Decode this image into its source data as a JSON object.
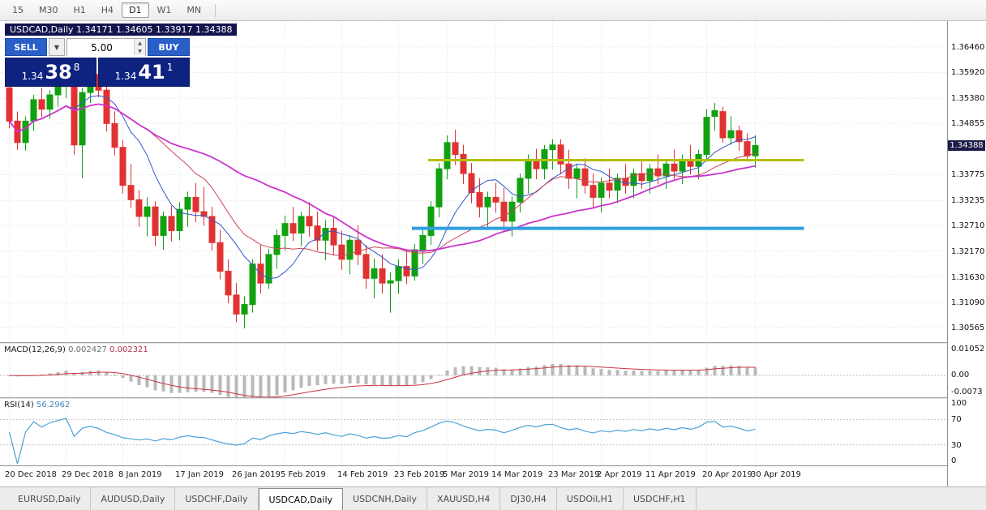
{
  "toolbar": {
    "timeframes": [
      "15",
      "M30",
      "H1",
      "H4",
      "D1",
      "W1",
      "MN"
    ],
    "active": "D1"
  },
  "chart": {
    "title": "USDCAD,Daily 1.34171 1.34605 1.33917 1.34388",
    "symbol": "USDCAD",
    "period": "Daily",
    "ohlc": {
      "open": "1.34171",
      "high": "1.34605",
      "low": "1.33917",
      "close": "1.34388"
    }
  },
  "trade_panel": {
    "sell_button": "SELL",
    "buy_button": "BUY",
    "volume": "5.00",
    "dropdown_glyph": "▼",
    "spin_up_glyph": "▲",
    "spin_down_glyph": "▼",
    "sell_price": {
      "prefix": "1.34",
      "big": "38",
      "sup": "8"
    },
    "buy_price": {
      "prefix": "1.34",
      "big": "41",
      "sup": "1"
    }
  },
  "price_scale": {
    "current": "1.34388",
    "current_value": 1.34388,
    "ticks": [
      {
        "label": "1.36460",
        "value": 1.3646
      },
      {
        "label": "1.35920",
        "value": 1.3592
      },
      {
        "label": "1.35380",
        "value": 1.3538
      },
      {
        "label": "1.34855",
        "value": 1.34855
      },
      {
        "label": "1.33775",
        "value": 1.33775
      },
      {
        "label": "1.33235",
        "value": 1.33235
      },
      {
        "label": "1.32710",
        "value": 1.3271
      },
      {
        "label": "1.32170",
        "value": 1.3217
      },
      {
        "label": "1.31630",
        "value": 1.3163
      },
      {
        "label": "1.31090",
        "value": 1.3109
      },
      {
        "label": "1.30565",
        "value": 1.30565
      }
    ]
  },
  "macd": {
    "label": "MACD(12,26,9)",
    "value_main": "0.002427",
    "value_signal": "0.002321",
    "scale_labels": [
      "0.01052",
      "0.00",
      "-0.0073"
    ],
    "scale_values": [
      0.01052,
      0.0,
      -0.0073
    ]
  },
  "rsi": {
    "label": "RSI(14)",
    "value": "56.2962",
    "levels": [
      70,
      30
    ],
    "scale_labels": [
      "100",
      "70",
      "30",
      "0"
    ]
  },
  "tabs": [
    {
      "label": "EURUSD,Daily",
      "active": false
    },
    {
      "label": "AUDUSD,Daily",
      "active": false
    },
    {
      "label": "USDCHF,Daily",
      "active": false
    },
    {
      "label": "USDCAD,Daily",
      "active": true
    },
    {
      "label": "USDCNH,Daily",
      "active": false
    },
    {
      "label": "XAUUSD,H4",
      "active": false
    },
    {
      "label": "DJ30,H4",
      "active": false
    },
    {
      "label": "USDOil,H1",
      "active": false
    },
    {
      "label": "USDCHF,H1",
      "active": false
    }
  ],
  "colors": {
    "bull": "#10a010",
    "bear": "#e03232",
    "ma_fast": "#3355cc",
    "ma_mid": "#cc4455",
    "ma_slow": "#cc33cc",
    "resistance_line": "#b3bf0d",
    "support_line": "#2f9fe0",
    "macd_hist": "#b9b9b9",
    "macd_signal": "#cc3344",
    "rsi_line": "#4aa0d8",
    "level_line": "#c4c4c4",
    "grid": "#e4e4e4",
    "badge_bg": "#1c1c4a"
  },
  "chart_data": {
    "type": "candlestick",
    "title": "USDCAD Daily",
    "y_range": [
      1.3026,
      1.37
    ],
    "x_tick_labels": [
      "20 Dec 2018",
      "29 Dec 2018",
      "8 Jan 2019",
      "17 Jan 2019",
      "26 Jan 2019",
      "5 Feb 2019",
      "14 Feb 2019",
      "23 Feb 2019",
      "5 Mar 2019",
      "14 Mar 2019",
      "23 Mar 2019",
      "2 Apr 2019",
      "11 Apr 2019",
      "20 Apr 2019",
      "30 Apr 2019"
    ],
    "x_tick_indices": [
      0,
      7,
      14,
      21,
      28,
      34,
      41,
      48,
      54,
      60,
      67,
      73,
      79,
      86,
      92
    ],
    "candles": [
      [
        1.356,
        1.357,
        1.3475,
        1.349
      ],
      [
        1.349,
        1.351,
        1.343,
        1.3445
      ],
      [
        1.3445,
        1.35,
        1.3428,
        1.349
      ],
      [
        1.349,
        1.3545,
        1.347,
        1.3535
      ],
      [
        1.3535,
        1.356,
        1.3498,
        1.3515
      ],
      [
        1.3515,
        1.3555,
        1.3495,
        1.3545
      ],
      [
        1.3545,
        1.358,
        1.352,
        1.3565
      ],
      [
        1.3565,
        1.36,
        1.3538,
        1.359
      ],
      [
        1.359,
        1.3605,
        1.342,
        1.344
      ],
      [
        1.344,
        1.356,
        1.337,
        1.355
      ],
      [
        1.355,
        1.3598,
        1.3528,
        1.3588
      ],
      [
        1.3588,
        1.3618,
        1.354,
        1.3555
      ],
      [
        1.3555,
        1.357,
        1.3468,
        1.3485
      ],
      [
        1.3485,
        1.351,
        1.3418,
        1.3435
      ],
      [
        1.3435,
        1.345,
        1.3338,
        1.3355
      ],
      [
        1.3355,
        1.34,
        1.3308,
        1.3325
      ],
      [
        1.3325,
        1.3345,
        1.3268,
        1.329
      ],
      [
        1.329,
        1.333,
        1.3248,
        1.331
      ],
      [
        1.331,
        1.3322,
        1.3228,
        1.325
      ],
      [
        1.325,
        1.33,
        1.322,
        1.329
      ],
      [
        1.329,
        1.3312,
        1.3238,
        1.326
      ],
      [
        1.326,
        1.332,
        1.324,
        1.3305
      ],
      [
        1.3305,
        1.3342,
        1.3268,
        1.333
      ],
      [
        1.333,
        1.336,
        1.3278,
        1.33
      ],
      [
        1.33,
        1.3352,
        1.327,
        1.329
      ],
      [
        1.329,
        1.331,
        1.3218,
        1.3235
      ],
      [
        1.3235,
        1.3262,
        1.3158,
        1.3175
      ],
      [
        1.3175,
        1.32,
        1.3108,
        1.3125
      ],
      [
        1.3125,
        1.315,
        1.3068,
        1.3085
      ],
      [
        1.3085,
        1.3122,
        1.3055,
        1.3105
      ],
      [
        1.3105,
        1.32,
        1.3088,
        1.319
      ],
      [
        1.319,
        1.323,
        1.3128,
        1.315
      ],
      [
        1.315,
        1.3222,
        1.3138,
        1.321
      ],
      [
        1.321,
        1.3262,
        1.318,
        1.325
      ],
      [
        1.325,
        1.3292,
        1.3218,
        1.3275
      ],
      [
        1.3275,
        1.331,
        1.3238,
        1.3255
      ],
      [
        1.3255,
        1.33,
        1.3228,
        1.329
      ],
      [
        1.329,
        1.332,
        1.3248,
        1.327
      ],
      [
        1.327,
        1.33,
        1.3218,
        1.324
      ],
      [
        1.324,
        1.3282,
        1.3198,
        1.3265
      ],
      [
        1.3265,
        1.329,
        1.3208,
        1.323
      ],
      [
        1.323,
        1.326,
        1.3178,
        1.32
      ],
      [
        1.32,
        1.325,
        1.3168,
        1.324
      ],
      [
        1.324,
        1.3272,
        1.3188,
        1.321
      ],
      [
        1.321,
        1.323,
        1.3138,
        1.316
      ],
      [
        1.316,
        1.3202,
        1.3118,
        1.318
      ],
      [
        1.318,
        1.321,
        1.3128,
        1.315
      ],
      [
        1.315,
        1.3172,
        1.3088,
        1.3155
      ],
      [
        1.3155,
        1.32,
        1.3128,
        1.3185
      ],
      [
        1.3185,
        1.322,
        1.3148,
        1.3165
      ],
      [
        1.3165,
        1.3232,
        1.3155,
        1.322
      ],
      [
        1.322,
        1.3262,
        1.319,
        1.325
      ],
      [
        1.325,
        1.3322,
        1.323,
        1.331
      ],
      [
        1.331,
        1.3402,
        1.3288,
        1.339
      ],
      [
        1.339,
        1.346,
        1.3368,
        1.3445
      ],
      [
        1.3445,
        1.3472,
        1.3398,
        1.342
      ],
      [
        1.342,
        1.344,
        1.3358,
        1.338
      ],
      [
        1.338,
        1.3402,
        1.3318,
        1.334
      ],
      [
        1.334,
        1.337,
        1.3288,
        1.331
      ],
      [
        1.331,
        1.3342,
        1.3268,
        1.333
      ],
      [
        1.333,
        1.336,
        1.3298,
        1.332
      ],
      [
        1.332,
        1.335,
        1.3258,
        1.328
      ],
      [
        1.328,
        1.3332,
        1.3248,
        1.332
      ],
      [
        1.332,
        1.338,
        1.3298,
        1.337
      ],
      [
        1.337,
        1.342,
        1.3338,
        1.341
      ],
      [
        1.341,
        1.3432,
        1.3368,
        1.339
      ],
      [
        1.339,
        1.344,
        1.3368,
        1.343
      ],
      [
        1.343,
        1.3452,
        1.3388,
        1.344
      ],
      [
        1.344,
        1.3452,
        1.3378,
        1.34
      ],
      [
        1.34,
        1.343,
        1.3348,
        1.337
      ],
      [
        1.337,
        1.34,
        1.3328,
        1.339
      ],
      [
        1.339,
        1.3412,
        1.3338,
        1.3355
      ],
      [
        1.3355,
        1.338,
        1.3308,
        1.333
      ],
      [
        1.333,
        1.3372,
        1.3298,
        1.336
      ],
      [
        1.336,
        1.339,
        1.3328,
        1.3345
      ],
      [
        1.3345,
        1.338,
        1.3318,
        1.337
      ],
      [
        1.337,
        1.34,
        1.3338,
        1.3355
      ],
      [
        1.3355,
        1.339,
        1.3328,
        1.338
      ],
      [
        1.338,
        1.341,
        1.3348,
        1.3365
      ],
      [
        1.3365,
        1.34,
        1.3338,
        1.339
      ],
      [
        1.339,
        1.342,
        1.3358,
        1.3375
      ],
      [
        1.3375,
        1.341,
        1.3348,
        1.34
      ],
      [
        1.34,
        1.343,
        1.3368,
        1.3385
      ],
      [
        1.3385,
        1.342,
        1.3358,
        1.341
      ],
      [
        1.341,
        1.344,
        1.3378,
        1.3395
      ],
      [
        1.3395,
        1.343,
        1.3368,
        1.342
      ],
      [
        1.342,
        1.3515,
        1.3405,
        1.3498
      ],
      [
        1.35,
        1.3528,
        1.347,
        1.3512
      ],
      [
        1.351,
        1.352,
        1.3445,
        1.3455
      ],
      [
        1.3455,
        1.35,
        1.344,
        1.347
      ],
      [
        1.347,
        1.348,
        1.3428,
        1.3447
      ],
      [
        1.3447,
        1.3465,
        1.3405,
        1.3417
      ],
      [
        1.34171,
        1.34605,
        1.33917,
        1.34388
      ]
    ],
    "overlays": {
      "moving_averages": [
        {
          "period": 8,
          "color": "#3355cc",
          "width": 1
        },
        {
          "period": 16,
          "color": "#cc4455",
          "width": 1
        },
        {
          "period": 32,
          "color": "#cc33cc",
          "width": 1.8
        }
      ],
      "horizontal_lines": [
        {
          "name": "resistance",
          "price": 1.3408,
          "color": "#b3bf0d",
          "width": 3,
          "from_index": 52,
          "to_index": 98
        },
        {
          "name": "support",
          "price": 1.3265,
          "color": "#2f9fe0",
          "width": 4,
          "from_index": 50,
          "to_index": 98
        }
      ]
    },
    "indicators": {
      "macd": {
        "fast": 12,
        "slow": 26,
        "signal": 9,
        "current_main": 0.002427,
        "current_signal": 0.002321
      },
      "rsi": {
        "period": 14,
        "current": 56.2962,
        "levels": [
          70,
          30
        ]
      }
    }
  }
}
